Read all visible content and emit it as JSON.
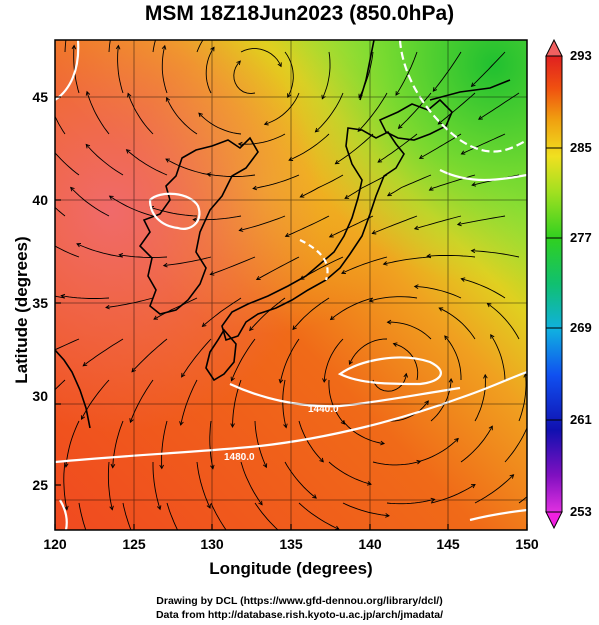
{
  "title": "MSM 18Z18Jun2023 (850.0hPa)",
  "axes": {
    "xlabel": "Longitude (degrees)",
    "ylabel": "Latitude  (degrees)",
    "xticks": [
      "120",
      "125",
      "130",
      "135",
      "140",
      "145",
      "150"
    ],
    "yticks": [
      "25",
      "30",
      "35",
      "40",
      "45"
    ],
    "xrange": [
      120,
      150
    ],
    "yrange": [
      22.4,
      47.6
    ]
  },
  "colorbar": {
    "ticks": [
      "293",
      "285",
      "277",
      "269",
      "261",
      "253"
    ],
    "range": [
      253,
      293
    ],
    "colors": [
      "#e030e0",
      "#7010c0",
      "#1010c0",
      "#1060f0",
      "#10c0e0",
      "#10c060",
      "#30d020",
      "#90e020",
      "#f0e020",
      "#f0a010",
      "#f06010",
      "#e02020",
      "#f06060"
    ]
  },
  "contour_labels": [
    "1440.0",
    "1480.0"
  ],
  "footer": {
    "line1": "Drawing by DCL (https://www.gfd-dennou.org/library/dcl/)",
    "line2": "Data from http://database.rish.kyoto-u.ac.jp/arch/jmadata/"
  }
}
